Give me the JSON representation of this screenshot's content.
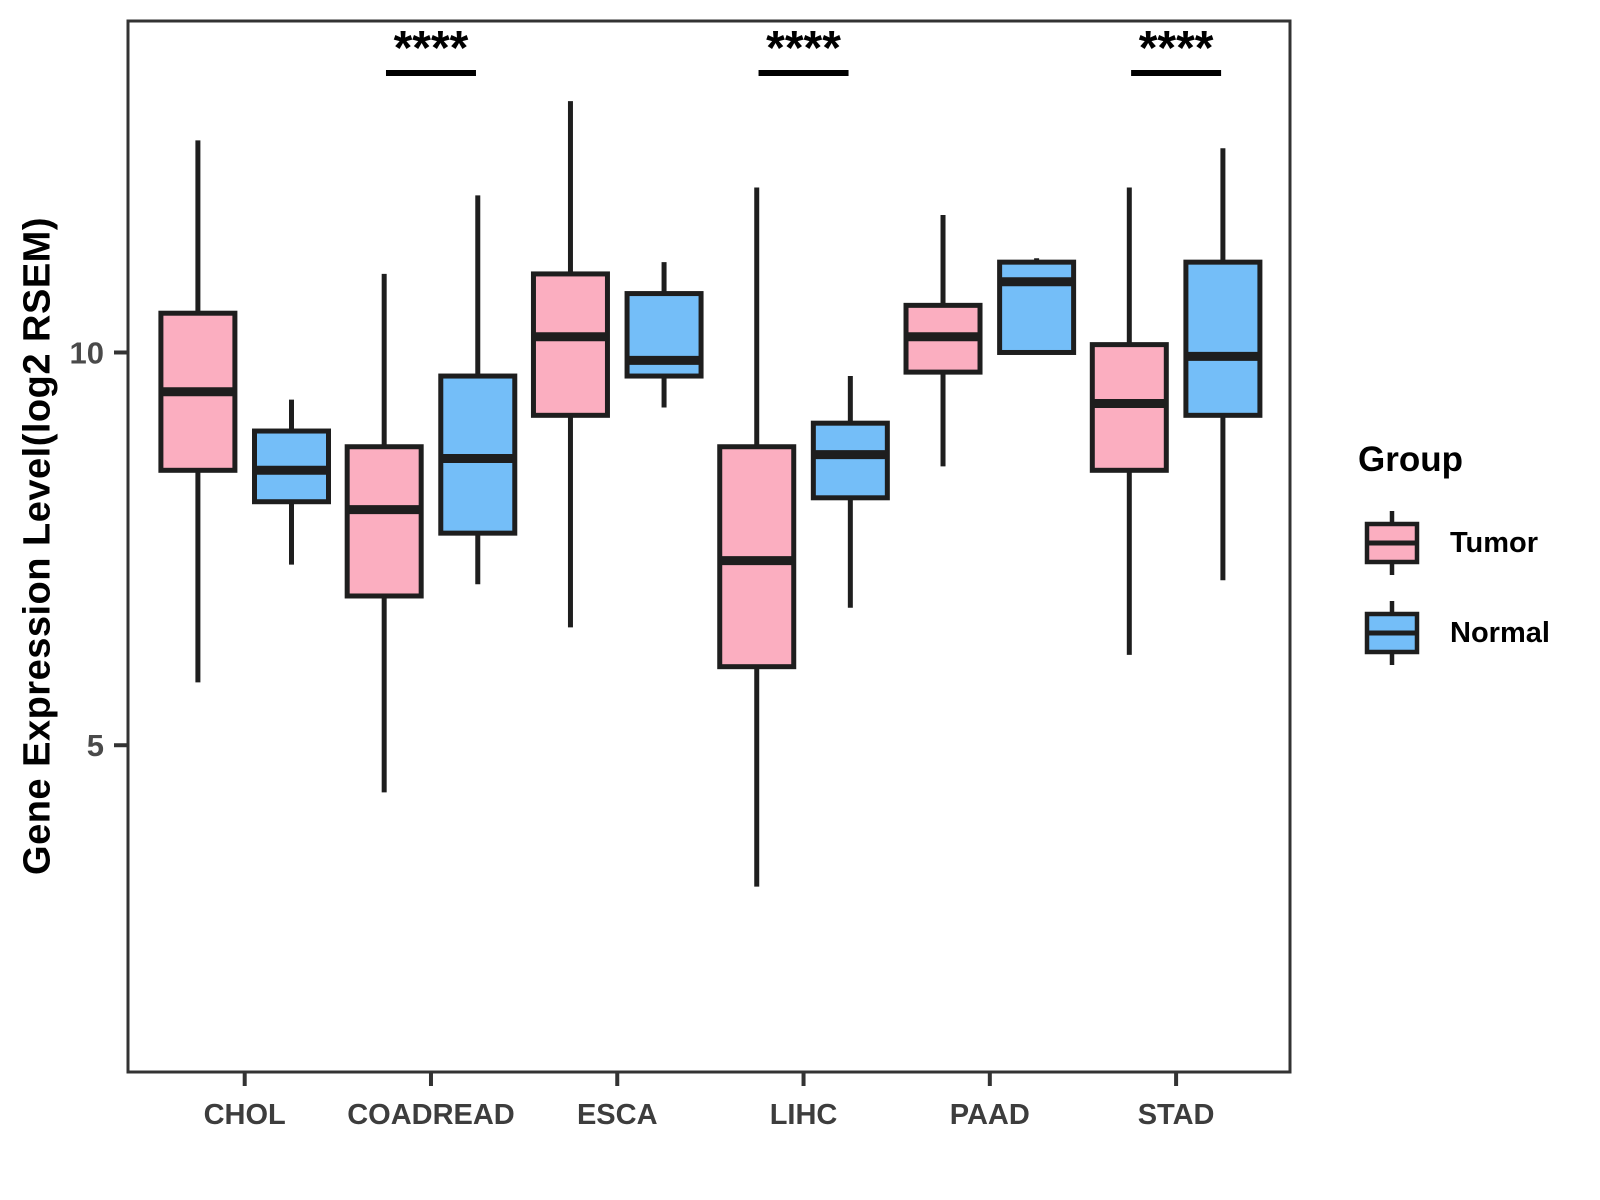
{
  "figure": {
    "background": "#ffffff"
  },
  "chart_data": {
    "type": "grouped_boxplot",
    "title": "",
    "xlabel": "",
    "ylabel": "Gene Expression Level(log2 RSEM)",
    "categories": [
      "CHOL",
      "COADREAD",
      "ESCA",
      "LIHC",
      "PAAD",
      "STAD"
    ],
    "y_ticks": [
      5,
      10
    ],
    "y_domain": [
      0.84,
      14.22
    ],
    "grid": "off",
    "legend_position": "right",
    "colors": {
      "stroke": "#1e1e1e",
      "panel_border": "#333333",
      "axis_tick_text": "#4a4a4a",
      "x_label_text": "#3d3d3d",
      "significance_text": "#000000"
    },
    "series": [
      {
        "name": "Tumor",
        "color": "#FBAEC0",
        "stats_format": [
          "whisker_low",
          "q1",
          "median",
          "q3",
          "whisker_high"
        ],
        "stats": [
          [
            5.8,
            8.5,
            9.5,
            10.5,
            12.7
          ],
          [
            4.4,
            6.9,
            8.0,
            8.8,
            11.0
          ],
          [
            6.5,
            9.2,
            10.2,
            11.0,
            13.2
          ],
          [
            3.2,
            6.0,
            7.35,
            8.8,
            12.1
          ],
          [
            8.55,
            9.75,
            10.2,
            10.6,
            11.75
          ],
          [
            6.15,
            8.5,
            9.35,
            10.1,
            12.1
          ]
        ]
      },
      {
        "name": "Normal",
        "color": "#74BEF8",
        "stats_format": [
          "whisker_low",
          "q1",
          "median",
          "q3",
          "whisker_high"
        ],
        "stats": [
          [
            7.3,
            8.1,
            8.5,
            9.0,
            9.4
          ],
          [
            7.05,
            7.7,
            8.65,
            9.7,
            12.0
          ],
          [
            9.3,
            9.7,
            9.9,
            10.75,
            11.15
          ],
          [
            6.75,
            8.15,
            8.7,
            9.1,
            9.7
          ],
          [
            10.0,
            10.0,
            10.9,
            11.15,
            11.2
          ],
          [
            7.1,
            9.2,
            9.95,
            11.15,
            12.6
          ]
        ]
      }
    ],
    "significance": [
      {
        "category": "COADREAD",
        "label": "****"
      },
      {
        "category": "LIHC",
        "label": "****"
      },
      {
        "category": "STAD",
        "label": "****"
      }
    ],
    "legend": {
      "title": "Group",
      "items": [
        "Tumor",
        "Normal"
      ]
    }
  }
}
